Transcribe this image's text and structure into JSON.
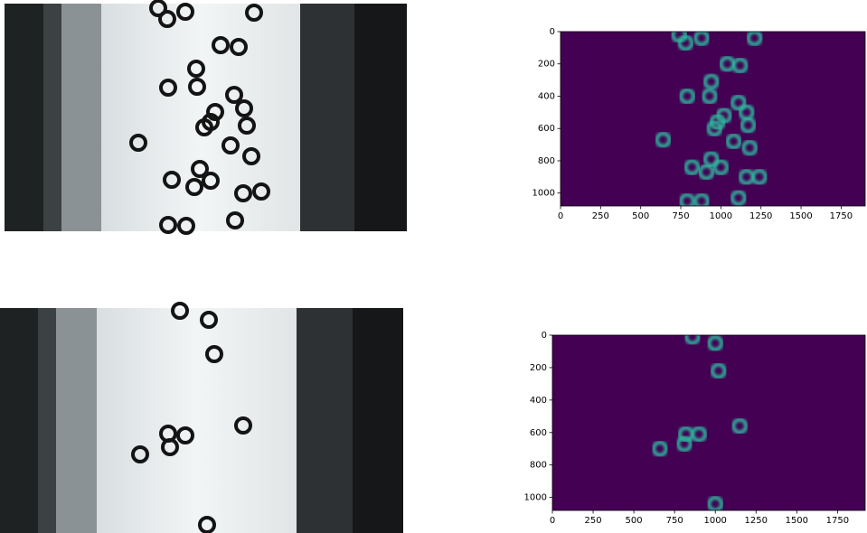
{
  "chart_data": [
    {
      "type": "scatter",
      "background_color": "#440154",
      "color": "#2fb49c",
      "x": [
        740,
        780,
        880,
        1210,
        1040,
        1120,
        940,
        930,
        790,
        1110,
        1160,
        1020,
        1170,
        980,
        960,
        1080,
        640,
        1180,
        940,
        820,
        1000,
        910,
        1160,
        1240,
        1110,
        790,
        880
      ],
      "y": [
        20,
        70,
        40,
        40,
        200,
        210,
        310,
        400,
        400,
        440,
        500,
        520,
        580,
        560,
        600,
        680,
        670,
        720,
        790,
        840,
        840,
        870,
        900,
        900,
        1030,
        1050,
        1050
      ],
      "xlim": [
        0,
        1900
      ],
      "ylim": [
        1080,
        0
      ],
      "xticks": [
        0,
        250,
        500,
        750,
        1000,
        1250,
        1500,
        1750
      ],
      "yticks": [
        0,
        200,
        400,
        600,
        800,
        1000
      ]
    },
    {
      "type": "scatter",
      "background_color": "#440154",
      "color": "#2fb49c",
      "x": [
        860,
        1000,
        1020,
        820,
        900,
        810,
        660,
        1150,
        1000
      ],
      "y": [
        10,
        50,
        220,
        610,
        610,
        670,
        700,
        560,
        1040
      ],
      "xlim": [
        0,
        1920
      ],
      "ylim": [
        1080,
        0
      ],
      "xticks": [
        0,
        250,
        500,
        750,
        1000,
        1250,
        1500,
        1750
      ],
      "yticks": [
        0,
        200,
        400,
        600,
        800,
        1000
      ]
    }
  ]
}
